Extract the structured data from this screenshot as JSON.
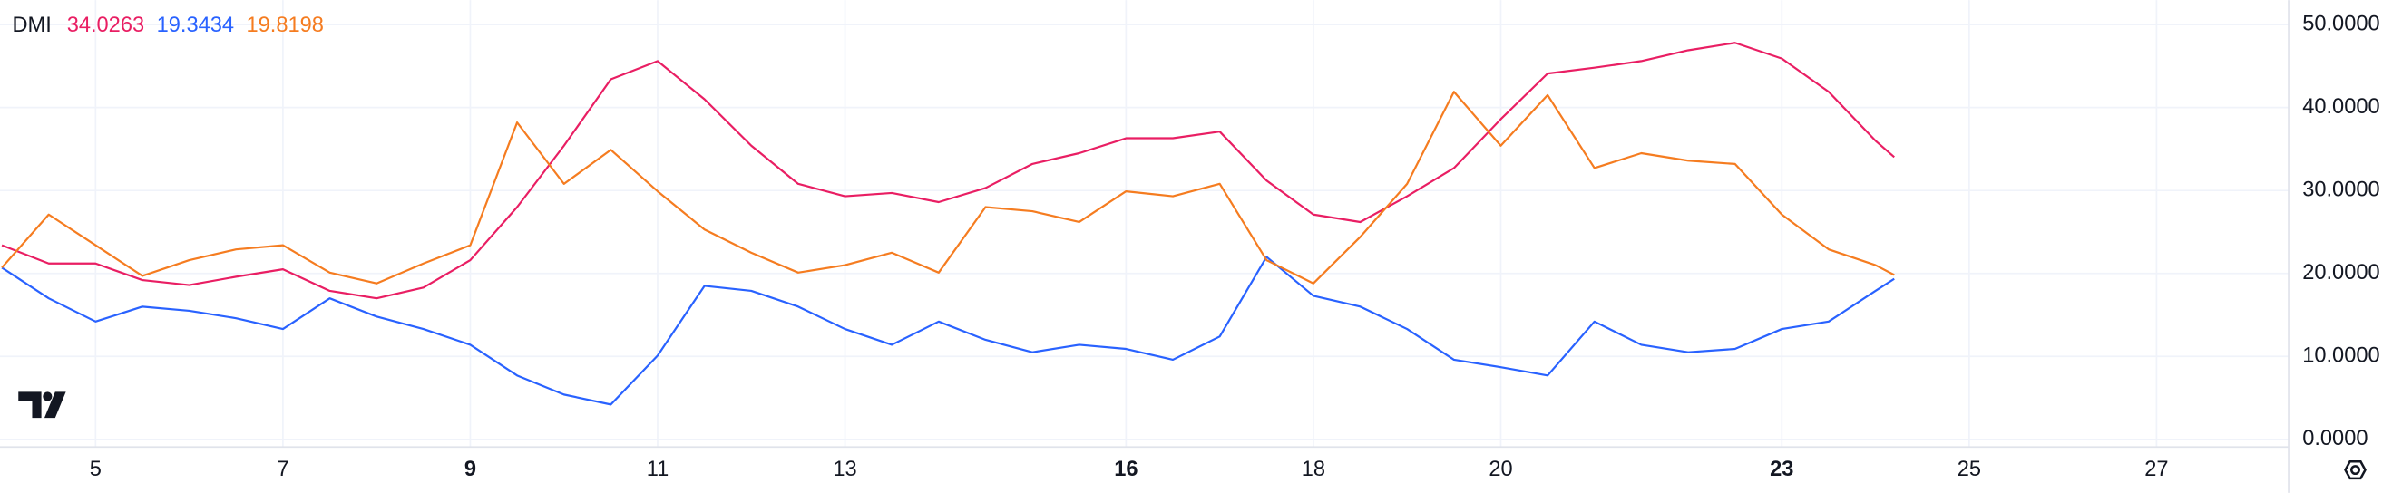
{
  "chart_data": {
    "type": "line",
    "title": "DMI",
    "x": [
      4,
      4.5,
      5,
      5.5,
      6,
      6.5,
      7,
      7.5,
      8,
      8.5,
      9,
      9.5,
      10,
      10.5,
      11,
      11.5,
      12,
      12.5,
      13,
      13.5,
      14,
      14.5,
      15,
      15.5,
      16,
      16.5,
      17,
      17.5,
      18,
      18.5,
      19,
      19.5,
      20,
      20.5,
      21,
      21.5,
      22,
      22.5,
      23,
      23.5,
      24,
      24.2
    ],
    "series": [
      {
        "color": "#e91e63",
        "values": [
          23.4,
          21.2,
          21.2,
          19.2,
          18.6,
          19.6,
          20.5,
          17.9,
          17,
          18.3,
          21.6,
          28,
          35.4,
          43.4,
          45.6,
          41,
          35.4,
          30.8,
          29.3,
          29.7,
          28.6,
          30.3,
          33.2,
          34.5,
          36.3,
          36.3,
          37.1,
          31.2,
          27.1,
          26.2,
          29.3,
          32.7,
          38.6,
          44.1,
          44.8,
          45.6,
          46.9,
          47.8,
          45.9,
          41.9,
          36,
          34.0263
        ]
      },
      {
        "color": "#2962ff",
        "values": [
          20.7,
          17,
          14.2,
          16,
          15.5,
          14.6,
          13.3,
          17,
          14.8,
          13.3,
          11.4,
          7.7,
          5.4,
          4.2,
          10.1,
          18.5,
          17.9,
          16,
          13.3,
          11.4,
          14.2,
          12,
          10.5,
          11.4,
          10.9,
          9.6,
          12.4,
          22,
          17.3,
          16,
          13.3,
          9.6,
          8.7,
          7.7,
          14.2,
          11.4,
          10.5,
          10.9,
          13.3,
          14.2,
          17.9,
          19.3434
        ]
      },
      {
        "color": "#f57c20",
        "values": [
          20.7,
          27.1,
          23.4,
          19.7,
          21.6,
          22.9,
          23.4,
          20.1,
          18.8,
          21.2,
          23.4,
          38.2,
          30.8,
          34.9,
          29.9,
          25.3,
          22.5,
          20.1,
          21,
          22.5,
          20.1,
          28,
          27.5,
          26.2,
          29.9,
          29.3,
          30.8,
          21.6,
          18.8,
          24.4,
          30.8,
          41.9,
          35.4,
          41.5,
          32.7,
          34.5,
          33.6,
          33.2,
          27.1,
          22.9,
          21,
          19.8198
        ]
      }
    ],
    "xlim": [
      3.98,
      28.41
    ],
    "xticks": [
      5,
      7,
      9,
      11,
      13,
      16,
      18,
      20,
      23,
      25,
      27
    ],
    "xtick_bold": [
      false,
      false,
      true,
      false,
      false,
      true,
      false,
      false,
      true,
      false,
      false
    ],
    "ylim": [
      -0.92,
      52.95
    ],
    "yticks": [
      {
        "value": 0,
        "label": "0.0000"
      },
      {
        "value": 10,
        "label": "10.0000"
      },
      {
        "value": 20,
        "label": "20.0000"
      },
      {
        "value": 30,
        "label": "30.0000"
      },
      {
        "value": 40,
        "label": "40.0000"
      },
      {
        "value": 50,
        "label": "50.0000"
      }
    ],
    "grid": true
  }
}
